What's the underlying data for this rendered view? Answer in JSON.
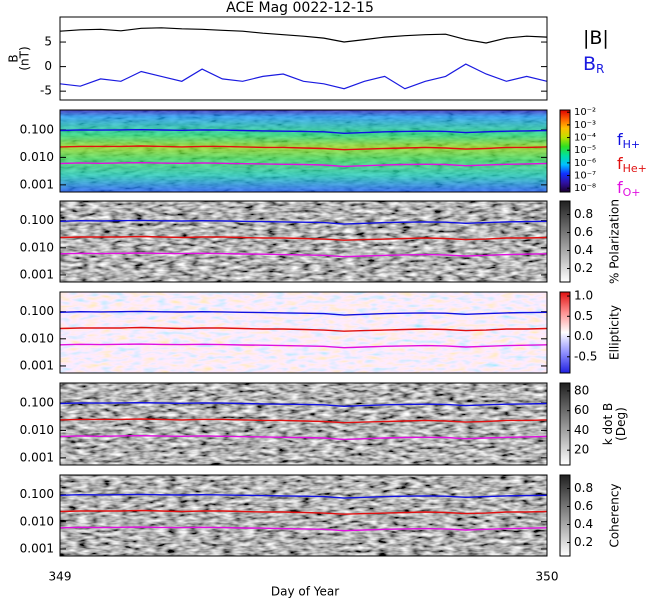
{
  "chart_data": {
    "type": "multi-panel",
    "title": "ACE Mag 0022-12-15",
    "x_label": "Day of Year",
    "xlim": [
      349,
      350
    ],
    "xticks": [
      349,
      350
    ],
    "x": [
      349,
      349.0417,
      349.0833,
      349.125,
      349.1667,
      349.2083,
      349.25,
      349.2917,
      349.3333,
      349.375,
      349.4167,
      349.4583,
      349.5,
      349.5417,
      349.5833,
      349.625,
      349.6667,
      349.7083,
      349.75,
      349.7917,
      349.8333,
      349.875,
      349.9167,
      349.9583,
      350
    ],
    "frequency_lines": [
      {
        "name": "f",
        "subscript": "H+",
        "color": "#1010e0",
        "values": [
          0.095,
          0.1,
          0.098,
          0.1,
          0.102,
          0.099,
          0.097,
          0.1,
          0.098,
          0.095,
          0.092,
          0.09,
          0.088,
          0.085,
          0.075,
          0.08,
          0.085,
          0.088,
          0.09,
          0.088,
          0.08,
          0.085,
          0.09,
          0.092,
          0.095
        ]
      },
      {
        "name": "f",
        "subscript": "He+",
        "color": "#e01010",
        "values": [
          0.024,
          0.025,
          0.025,
          0.025,
          0.026,
          0.025,
          0.024,
          0.025,
          0.025,
          0.024,
          0.023,
          0.023,
          0.022,
          0.021,
          0.019,
          0.02,
          0.021,
          0.022,
          0.023,
          0.022,
          0.02,
          0.021,
          0.023,
          0.023,
          0.024
        ]
      },
      {
        "name": "f",
        "subscript": "O+",
        "color": "#e010e0",
        "values": [
          0.006,
          0.0063,
          0.0061,
          0.0063,
          0.0064,
          0.0062,
          0.0061,
          0.0063,
          0.0061,
          0.0059,
          0.0058,
          0.0056,
          0.0055,
          0.0053,
          0.0047,
          0.005,
          0.0053,
          0.0055,
          0.0056,
          0.0055,
          0.005,
          0.0053,
          0.0056,
          0.0058,
          0.006
        ]
      }
    ],
    "panels": [
      {
        "type": "line",
        "ylabel": [
          "B",
          "(nT)"
        ],
        "ylim": [
          -6.8,
          10.1
        ],
        "yticks": [
          5,
          0,
          -5
        ],
        "series": [
          {
            "name": "|B|",
            "color": "#000000",
            "values": [
              7.2,
              7.5,
              7.6,
              7.3,
              7.8,
              7.9,
              7.7,
              7.6,
              7.4,
              7.2,
              6.8,
              6.5,
              6.2,
              5.8,
              5.0,
              5.5,
              6.0,
              6.3,
              6.5,
              6.6,
              5.5,
              4.8,
              5.8,
              6.2,
              6.0
            ]
          },
          {
            "name": "B",
            "subscript": "R",
            "color": "#1a1ae0",
            "values": [
              -3.5,
              -4,
              -2.5,
              -3,
              -1,
              -2,
              -3,
              -0.5,
              -2.5,
              -3,
              -2,
              -1.5,
              -3,
              -3.5,
              -4.5,
              -3,
              -2,
              -4.5,
              -3,
              -2,
              0.5,
              -1.5,
              -3,
              -2,
              -3
            ]
          }
        ]
      },
      {
        "type": "spectrogram",
        "log_y": true,
        "ylim": [
          0.00055,
          0.53
        ],
        "yticks": [
          {
            "value": 0.1,
            "label": "0.100"
          },
          {
            "value": 0.01,
            "label": "0.010"
          },
          0.001
        ],
        "legend": true,
        "colorbar": {
          "label": [],
          "log": true,
          "lim": [
            5e-09,
            0.015
          ],
          "ticks": [
            {
              "value": 0.01,
              "label": "10⁻²"
            },
            {
              "value": 0.001,
              "label": "10⁻³"
            },
            {
              "value": 0.0001,
              "label": "10⁻⁴"
            },
            {
              "value": 1e-05,
              "label": "10⁻⁵"
            },
            {
              "value": 1e-06,
              "label": "10⁻⁶"
            },
            {
              "value": 1e-07,
              "label": "10⁻⁷"
            },
            {
              "value": 1e-08,
              "label": "10⁻⁸"
            }
          ],
          "colors": [
            "#1a0030",
            "#3010a0",
            "#1030ff",
            "#00c0ff",
            "#00e0a0",
            "#30e020",
            "#c0e000",
            "#ffc000",
            "#ff6000",
            "#e00000"
          ]
        }
      },
      {
        "type": "spectrogram",
        "log_y": true,
        "ylim": [
          0.00055,
          0.53
        ],
        "yticks": [
          {
            "value": 0.1,
            "label": "0.100"
          },
          {
            "value": 0.01,
            "label": "0.010"
          },
          0.001
        ],
        "colorbar": {
          "label": [
            "% Polarization"
          ],
          "log": false,
          "lim": [
            0.05,
            0.95
          ],
          "ticks": [
            0.2,
            0.4,
            0.6,
            0.8
          ],
          "colors": [
            "#ffffff",
            "#202020"
          ]
        }
      },
      {
        "type": "spectrogram",
        "log_y": true,
        "ylim": [
          0.00055,
          0.53
        ],
        "yticks": [
          {
            "value": 0.1,
            "label": "0.100"
          },
          {
            "value": 0.01,
            "label": "0.010"
          },
          0.001
        ],
        "colorbar": {
          "label": [
            "Ellipticity"
          ],
          "log": false,
          "lim": [
            -0.9,
            1.1
          ],
          "ticks": [
            -0.5,
            {
              "value": 0,
              "label": "0.0"
            },
            0.5,
            {
              "value": 1,
              "label": "1.0"
            }
          ],
          "colors": [
            "#2020e0",
            "#9090ff",
            "#ffffff",
            "#ff9090",
            "#e01010"
          ]
        }
      },
      {
        "type": "spectrogram",
        "log_y": true,
        "ylim": [
          0.00055,
          0.53
        ],
        "yticks": [
          {
            "value": 0.1,
            "label": "0.100"
          },
          {
            "value": 0.01,
            "label": "0.010"
          },
          0.001
        ],
        "colorbar": {
          "label": [
            "k dot B",
            "(Deg)"
          ],
          "log": false,
          "lim": [
            5,
            88
          ],
          "ticks": [
            20,
            40,
            60,
            80
          ],
          "colors": [
            "#ffffff",
            "#202020"
          ]
        }
      },
      {
        "type": "spectrogram",
        "log_y": true,
        "ylim": [
          0.00055,
          0.53
        ],
        "yticks": [
          {
            "value": 0.1,
            "label": "0.100"
          },
          {
            "value": 0.01,
            "label": "0.010"
          },
          0.001
        ],
        "colorbar": {
          "label": [
            "Coherency"
          ],
          "log": false,
          "lim": [
            0.05,
            0.95
          ],
          "ticks": [
            0.2,
            0.4,
            0.6,
            0.8
          ],
          "colors": [
            "#ffffff",
            "#202020"
          ]
        }
      }
    ]
  }
}
